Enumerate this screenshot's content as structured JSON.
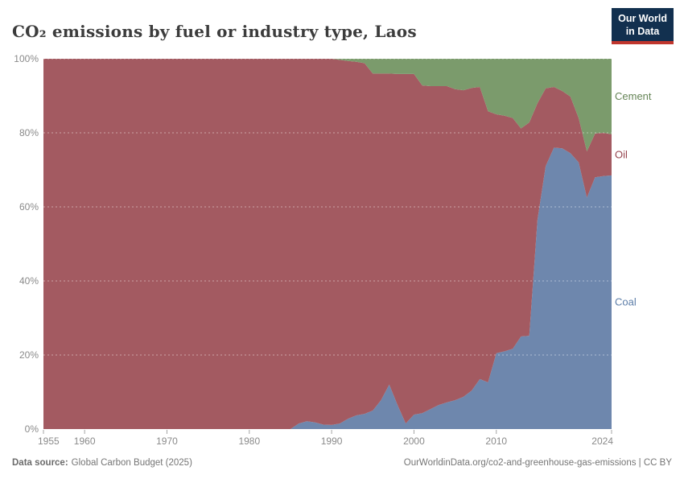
{
  "header": {
    "logo": {
      "line1": "Our World",
      "line2": "in Data",
      "bg_color": "#12304f",
      "accent_color": "#c0362d"
    }
  },
  "chart_data": {
    "type": "area",
    "stacking": "percent",
    "title": "CO₂ emissions by fuel or industry type, Laos",
    "xlabel": "",
    "ylabel": "",
    "ylim": [
      0,
      100
    ],
    "xlim": [
      1955,
      2024
    ],
    "grid": "dashed",
    "legend_position": "right",
    "stack_order": "bottom-to-top",
    "x": [
      1955,
      1956,
      1957,
      1958,
      1959,
      1960,
      1961,
      1962,
      1963,
      1964,
      1965,
      1966,
      1967,
      1968,
      1969,
      1970,
      1971,
      1972,
      1973,
      1974,
      1975,
      1976,
      1977,
      1978,
      1979,
      1980,
      1981,
      1982,
      1983,
      1984,
      1985,
      1986,
      1987,
      1988,
      1989,
      1990,
      1991,
      1992,
      1993,
      1994,
      1995,
      1996,
      1997,
      1998,
      1999,
      2000,
      2001,
      2002,
      2003,
      2004,
      2005,
      2006,
      2007,
      2008,
      2009,
      2010,
      2011,
      2012,
      2013,
      2014,
      2015,
      2016,
      2017,
      2018,
      2019,
      2020,
      2021,
      2022,
      2023,
      2024
    ],
    "series": [
      {
        "name": "Coal",
        "color": "#6e87ad",
        "label_color": "#5d7ea9",
        "values": [
          0,
          0,
          0,
          0,
          0,
          0,
          0,
          0,
          0,
          0,
          0,
          0,
          0,
          0,
          0,
          0,
          0,
          0,
          0,
          0,
          0,
          0,
          0,
          0,
          0,
          0,
          0,
          0,
          0,
          0,
          0,
          1.5,
          2.1,
          1.8,
          1.2,
          1.1,
          1.5,
          2.8,
          3.7,
          4.1,
          5.0,
          7.8,
          12.0,
          6.5,
          1.5,
          3.9,
          4.3,
          5.4,
          6.5,
          7.2,
          7.8,
          8.7,
          10.4,
          13.5,
          12.6,
          20.5,
          21.0,
          21.7,
          25.0,
          25.2,
          56.5,
          71.0,
          76.0,
          75.8,
          74.5,
          72.0,
          62.5,
          68.0,
          68.3,
          68.5
        ]
      },
      {
        "name": "Oil",
        "color": "#a35a61",
        "label_color": "#96444e",
        "values": [
          100,
          100,
          100,
          100,
          100,
          100,
          100,
          100,
          100,
          100,
          100,
          100,
          100,
          100,
          100,
          100,
          100,
          100,
          100,
          100,
          100,
          100,
          100,
          100,
          100,
          100,
          100,
          100,
          100,
          100,
          100,
          98.5,
          97.9,
          98.2,
          98.8,
          98.9,
          98.2,
          96.6,
          95.5,
          94.7,
          91.0,
          88.2,
          84.0,
          89.4,
          94.4,
          92.0,
          88.5,
          87.2,
          86.1,
          85.4,
          84.0,
          82.8,
          81.7,
          78.9,
          73.2,
          64.5,
          63.6,
          62.3,
          56.2,
          57.6,
          31.5,
          21.0,
          16.4,
          15.5,
          15.3,
          12.0,
          12.5,
          11.8,
          11.7,
          11.1
        ]
      },
      {
        "name": "Cement",
        "color": "#7b9b6c",
        "label_color": "#668557",
        "values": [
          0,
          0,
          0,
          0,
          0,
          0,
          0,
          0,
          0,
          0,
          0,
          0,
          0,
          0,
          0,
          0,
          0,
          0,
          0,
          0,
          0,
          0,
          0,
          0,
          0,
          0,
          0,
          0,
          0,
          0,
          0,
          0,
          0,
          0,
          0,
          0,
          0.3,
          0.6,
          0.8,
          1.2,
          4.0,
          4.0,
          4.0,
          4.1,
          4.1,
          4.1,
          7.2,
          7.4,
          7.4,
          7.4,
          8.2,
          8.5,
          7.9,
          7.6,
          14.2,
          15.0,
          15.4,
          16.0,
          18.8,
          17.2,
          12.0,
          8.0,
          7.6,
          8.7,
          10.2,
          16.0,
          25.0,
          20.2,
          20.0,
          20.4
        ]
      }
    ],
    "yticks": [
      {
        "value": 0,
        "label": "0%"
      },
      {
        "value": 20,
        "label": "20%"
      },
      {
        "value": 40,
        "label": "40%"
      },
      {
        "value": 60,
        "label": "60%"
      },
      {
        "value": 80,
        "label": "80%"
      },
      {
        "value": 100,
        "label": "100%"
      }
    ],
    "xticks": [
      {
        "value": 1955,
        "label": "1955"
      },
      {
        "value": 1960,
        "label": "1960"
      },
      {
        "value": 1970,
        "label": "1970"
      },
      {
        "value": 1980,
        "label": "1980"
      },
      {
        "value": 1990,
        "label": "1990"
      },
      {
        "value": 2000,
        "label": "2000"
      },
      {
        "value": 2010,
        "label": "2010"
      },
      {
        "value": 2024,
        "label": "2024"
      }
    ]
  },
  "footer": {
    "source_label": "Data source:",
    "source_value": "Global Carbon Budget (2025)",
    "right_text": "OurWorldinData.org/co2-and-greenhouse-gas-emissions | CC BY"
  }
}
